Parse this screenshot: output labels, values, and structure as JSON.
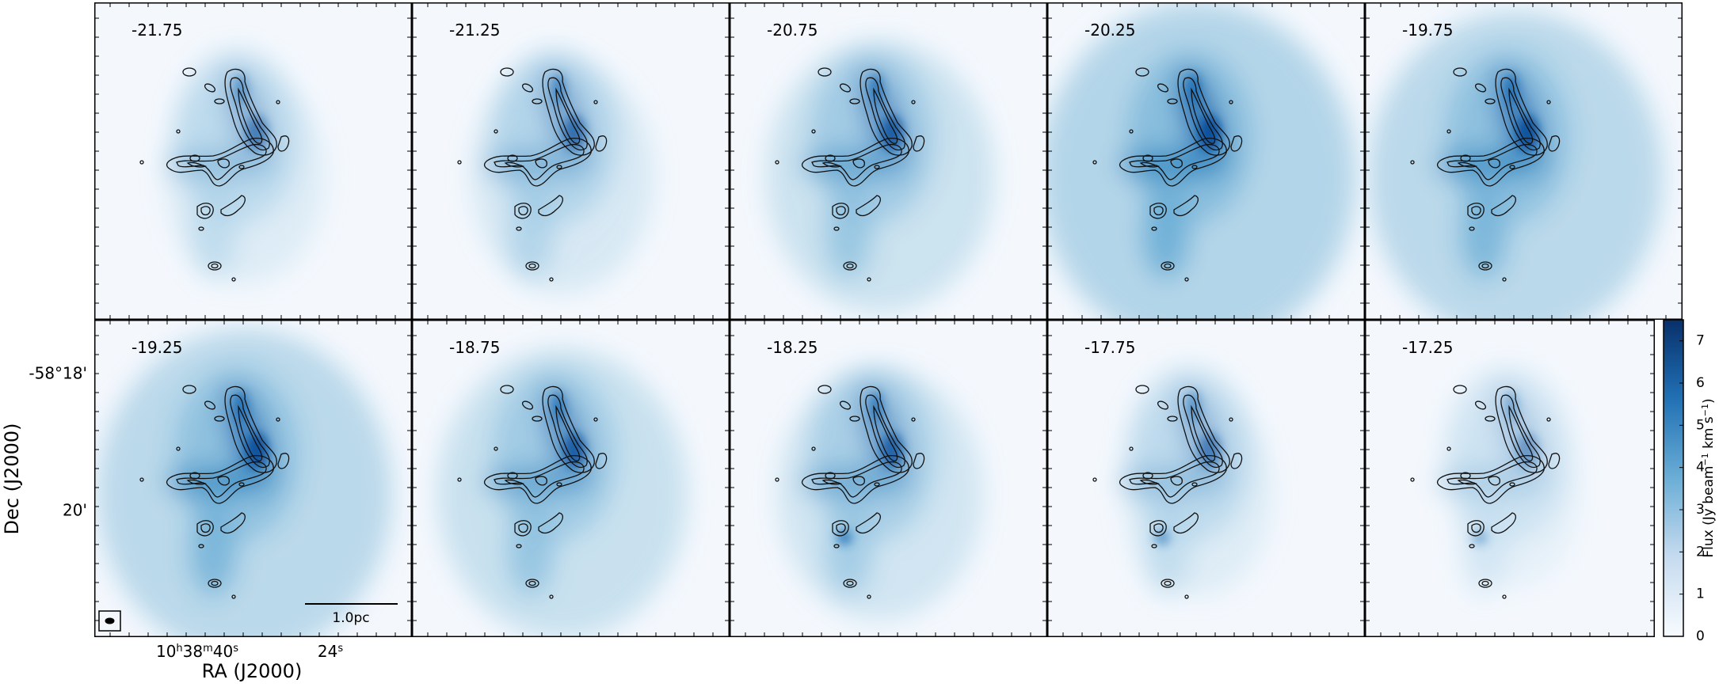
{
  "figure": {
    "panels": [
      "-21.75",
      "-21.25",
      "-20.75",
      "-20.25",
      "-19.75",
      "-19.25",
      "-18.75",
      "-18.25",
      "-17.75",
      "-17.25"
    ],
    "dec_ticks": [
      "-58°18'",
      "20'"
    ],
    "ra_ticks": [
      [
        [
          "10",
          "h"
        ],
        [
          "38",
          "m"
        ],
        [
          "40",
          "s"
        ]
      ],
      [
        [
          "24",
          "s"
        ]
      ]
    ],
    "x_label": "RA (J2000)",
    "y_label": "Dec (J2000)",
    "scale_bar": "1.0pc",
    "colorbar": {
      "label": [
        [
          "Flux (Jy beam",
          ""
        ],
        [
          "−1",
          "sup"
        ],
        [
          " km s",
          ""
        ],
        [
          "−1",
          "sup"
        ],
        [
          ")",
          ""
        ]
      ],
      "lim": [
        0,
        7.5
      ],
      "ticks": [
        0,
        1,
        2,
        3,
        4,
        5,
        6,
        7
      ],
      "colors": [
        "#f7fbff",
        "#c6dbef",
        "#6baed6",
        "#2171b5",
        "#08306b"
      ]
    }
  }
}
